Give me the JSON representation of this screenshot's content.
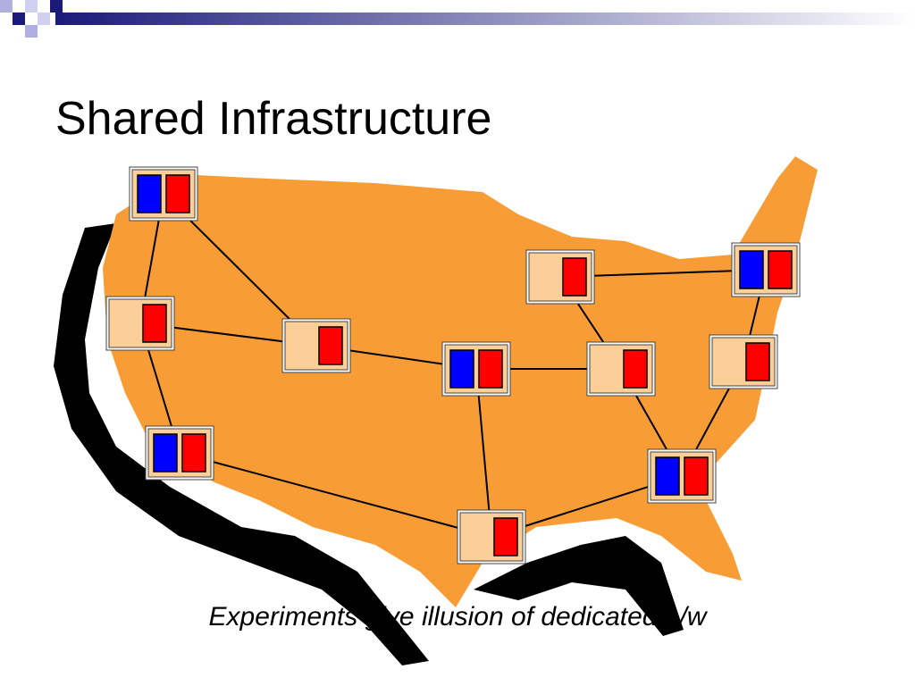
{
  "title": "Shared Infrastructure",
  "caption": "Experiments give illusion of dedicated h/w"
}
